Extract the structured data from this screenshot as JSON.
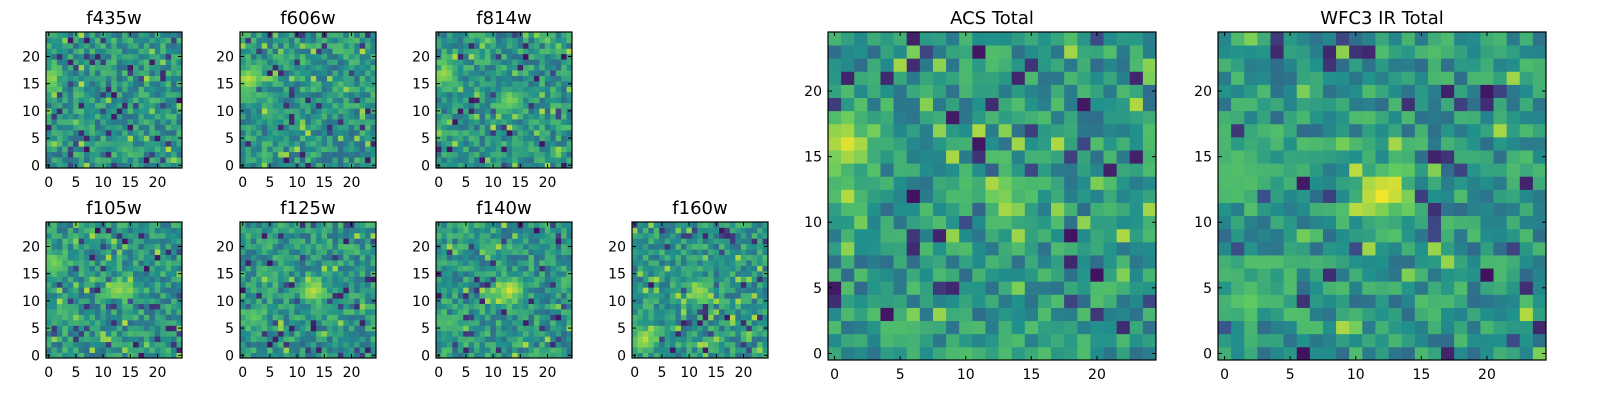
{
  "chart_data": [
    {
      "type": "heatmap",
      "title": "f435w",
      "grid_size": 25,
      "grid": false,
      "xticks": [
        "0",
        "5",
        "10",
        "15",
        "20"
      ],
      "yticks": [
        "0",
        "5",
        "10",
        "15",
        "20"
      ],
      "xlim": [
        0,
        24
      ],
      "ylim": [
        0,
        24
      ],
      "features": [
        {
          "x": 0.5,
          "y": 16,
          "level": 0.85
        }
      ]
    },
    {
      "type": "heatmap",
      "title": "f606w",
      "grid_size": 25,
      "grid": false,
      "xticks": [
        "0",
        "5",
        "10",
        "15",
        "20"
      ],
      "yticks": [
        "0",
        "5",
        "10",
        "15",
        "20"
      ],
      "xlim": [
        0,
        24
      ],
      "ylim": [
        0,
        24
      ],
      "features": [
        {
          "x": 1,
          "y": 16,
          "level": 0.9
        }
      ]
    },
    {
      "type": "heatmap",
      "title": "f814w",
      "grid_size": 25,
      "grid": false,
      "xticks": [
        "0",
        "5",
        "10",
        "15",
        "20"
      ],
      "yticks": [
        "0",
        "5",
        "10",
        "15",
        "20"
      ],
      "xlim": [
        0,
        24
      ],
      "ylim": [
        0,
        24
      ],
      "features": [
        {
          "x": 1,
          "y": 17,
          "level": 0.85
        },
        {
          "x": 13,
          "y": 12,
          "level": 0.8
        }
      ]
    },
    {
      "type": "heatmap",
      "title": "f105w",
      "grid_size": 25,
      "grid": false,
      "xticks": [
        "0",
        "5",
        "10",
        "15",
        "20"
      ],
      "yticks": [
        "0",
        "5",
        "10",
        "15",
        "20"
      ],
      "xlim": [
        0,
        24
      ],
      "ylim": [
        0,
        24
      ],
      "features": [
        {
          "x": 1,
          "y": 17,
          "level": 0.8
        },
        {
          "x": 13,
          "y": 12,
          "level": 0.85
        },
        {
          "x": 2,
          "y": 8,
          "level": 0.7
        }
      ]
    },
    {
      "type": "heatmap",
      "title": "f125w",
      "grid_size": 25,
      "grid": false,
      "xticks": [
        "0",
        "5",
        "10",
        "15",
        "20"
      ],
      "yticks": [
        "0",
        "5",
        "10",
        "15",
        "20"
      ],
      "xlim": [
        0,
        24
      ],
      "ylim": [
        0,
        24
      ],
      "features": [
        {
          "x": 13,
          "y": 12,
          "level": 0.9
        },
        {
          "x": 2,
          "y": 7,
          "level": 0.75
        }
      ]
    },
    {
      "type": "heatmap",
      "title": "f140w",
      "grid_size": 25,
      "grid": false,
      "xticks": [
        "0",
        "5",
        "10",
        "15",
        "20"
      ],
      "yticks": [
        "0",
        "5",
        "10",
        "15",
        "20"
      ],
      "xlim": [
        0,
        24
      ],
      "ylim": [
        0,
        24
      ],
      "features": [
        {
          "x": 13,
          "y": 12,
          "level": 0.95
        },
        {
          "x": 2,
          "y": 6,
          "level": 0.7
        }
      ]
    },
    {
      "type": "heatmap",
      "title": "f160w",
      "grid_size": 25,
      "grid": false,
      "xticks": [
        "0",
        "5",
        "10",
        "15",
        "20"
      ],
      "yticks": [
        "0",
        "5",
        "10",
        "15",
        "20"
      ],
      "xlim": [
        0,
        24
      ],
      "ylim": [
        0,
        24
      ],
      "features": [
        {
          "x": 12,
          "y": 12,
          "level": 0.85
        },
        {
          "x": 2,
          "y": 3,
          "level": 0.9
        }
      ]
    },
    {
      "type": "heatmap",
      "title": "ACS Total",
      "grid_size": 25,
      "grid": false,
      "xticks": [
        "0",
        "5",
        "10",
        "15",
        "20"
      ],
      "yticks": [
        "0",
        "5",
        "10",
        "15",
        "20"
      ],
      "xlim": [
        0,
        24
      ],
      "ylim": [
        0,
        24
      ],
      "features": [
        {
          "x": 1,
          "y": 16,
          "level": 0.95
        },
        {
          "x": 13,
          "y": 12,
          "level": 0.8
        }
      ]
    },
    {
      "type": "heatmap",
      "title": "WFC3 IR Total",
      "grid_size": 25,
      "grid": false,
      "xticks": [
        "0",
        "5",
        "10",
        "15",
        "20"
      ],
      "yticks": [
        "0",
        "5",
        "10",
        "15",
        "20"
      ],
      "xlim": [
        0,
        24
      ],
      "ylim": [
        0,
        24
      ],
      "features": [
        {
          "x": 12,
          "y": 12,
          "level": 0.98
        },
        {
          "x": 1,
          "y": 14,
          "level": 0.7
        },
        {
          "x": 2,
          "y": 4,
          "level": 0.75
        }
      ]
    }
  ],
  "colormap": [
    "#440154",
    "#3b528b",
    "#21918c",
    "#5ec962",
    "#fde725"
  ]
}
